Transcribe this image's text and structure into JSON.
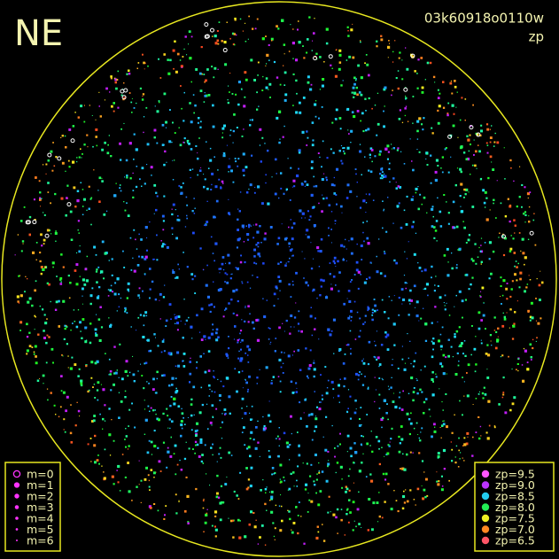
{
  "header": {
    "corner": "NE",
    "frame_id": "03k60918o0110w",
    "quantity": "zp"
  },
  "legend_magnitude": {
    "entries": [
      "m=0",
      "m=1",
      "m=2",
      "m=3",
      "m=4",
      "m=5",
      "m=6"
    ],
    "color": "#ff33ff"
  },
  "legend_zp": {
    "entries": [
      {
        "label": "zp=9.5",
        "color": "#ff55ff"
      },
      {
        "label": "zp=9.0",
        "color": "#bb33ff"
      },
      {
        "label": "zp=8.5",
        "color": "#22ccee"
      },
      {
        "label": "zp=8.0",
        "color": "#22ee55"
      },
      {
        "label": "zp=7.5",
        "color": "#eeee22"
      },
      {
        "label": "zp=7.0",
        "color": "#ff8822"
      },
      {
        "label": "zp=6.5",
        "color": "#ff5566"
      }
    ]
  }
}
